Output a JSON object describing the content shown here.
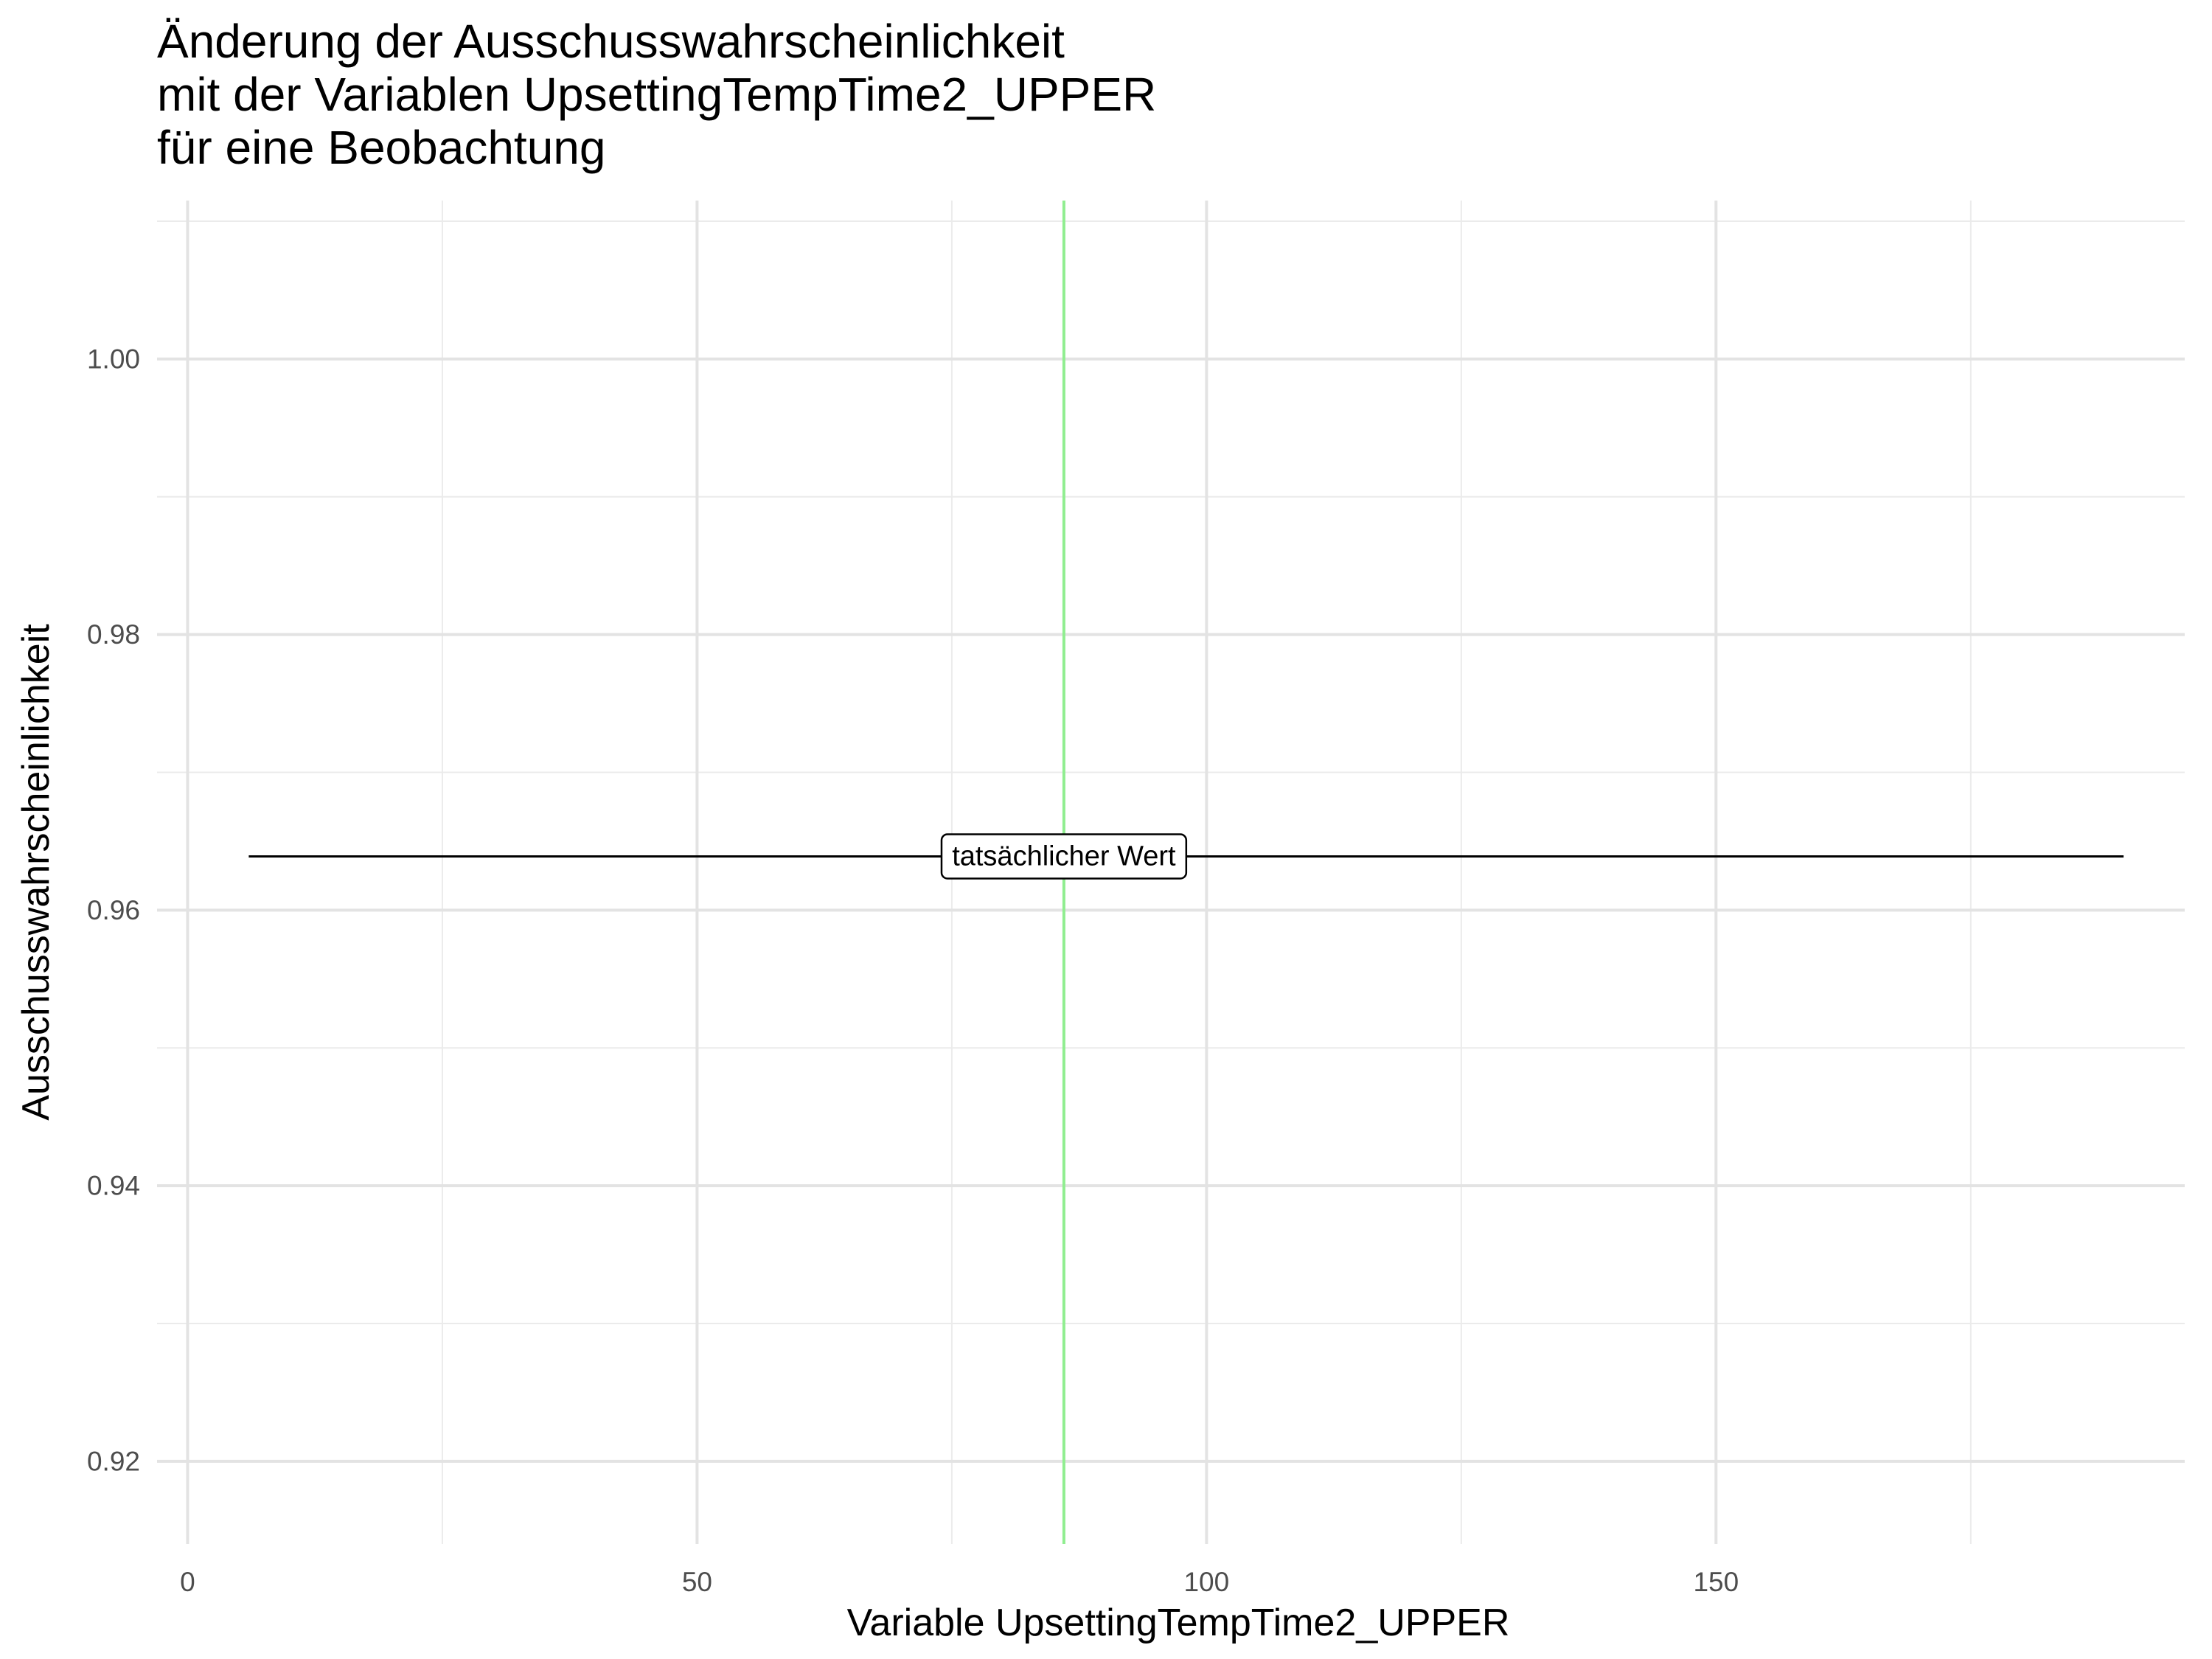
{
  "chart_data": {
    "type": "line",
    "title_lines": [
      "Änderung der Ausschusswahrscheinlichkeit",
      " mit der Variablen UpsettingTempTime2_UPPER",
      " für eine Beobachtung"
    ],
    "xlabel": "Variable UpsettingTempTime2_UPPER",
    "ylabel": "Ausschusswahrscheinlichkeit",
    "xlim": [
      -3,
      196
    ],
    "ylim": [
      0.914,
      1.0115
    ],
    "x_ticks": [
      0,
      50,
      100,
      150
    ],
    "x_tick_labels": [
      "0",
      "50",
      "100",
      "150"
    ],
    "x_minor_ticks": [
      25,
      75,
      125,
      175
    ],
    "y_ticks": [
      0.92,
      0.94,
      0.96,
      0.98,
      1.0
    ],
    "y_tick_labels": [
      "0.92",
      "0.94",
      "0.96",
      "0.98",
      "1.00"
    ],
    "y_minor_ticks": [
      0.93,
      0.95,
      0.97,
      0.99,
      1.01
    ],
    "grid": true,
    "series": [
      {
        "x": [
          6,
          190
        ],
        "y": [
          0.9639,
          0.9639
        ],
        "color": "#000000"
      }
    ],
    "vline": {
      "x": 86,
      "color": "#90ee90"
    },
    "annotation": {
      "text": "tatsächlicher Wert",
      "x": 86,
      "y": 0.9639
    }
  }
}
